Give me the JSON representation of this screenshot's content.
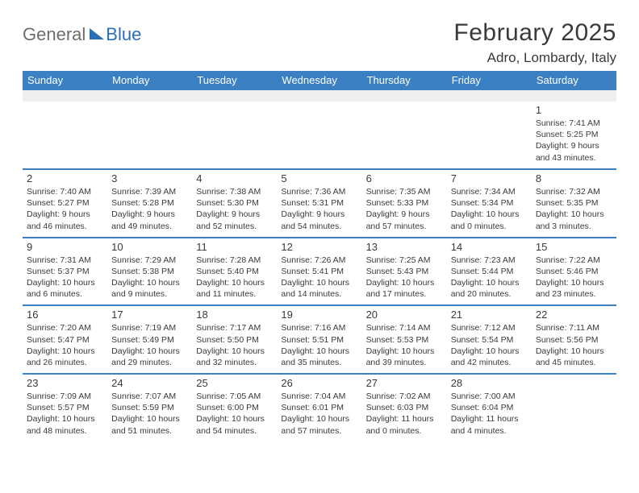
{
  "logo": {
    "word1": "General",
    "word2": "Blue"
  },
  "title": "February 2025",
  "subtitle": "Adro, Lombardy, Italy",
  "colors": {
    "header_bg": "#3a80c3",
    "header_text": "#ffffff",
    "rule": "#3a80c3",
    "blank_row": "#efefef",
    "text": "#3a3a3a",
    "logo_gray": "#6d6d6d",
    "logo_blue": "#2a6fb5",
    "page_bg": "#ffffff"
  },
  "typography": {
    "title_fontsize": 30,
    "subtitle_fontsize": 17,
    "header_fontsize": 13,
    "daynum_fontsize": 13,
    "cell_fontsize": 10.5
  },
  "day_headers": [
    "Sunday",
    "Monday",
    "Tuesday",
    "Wednesday",
    "Thursday",
    "Friday",
    "Saturday"
  ],
  "weeks": [
    [
      null,
      null,
      null,
      null,
      null,
      null,
      {
        "n": "1",
        "sunrise": "Sunrise: 7:41 AM",
        "sunset": "Sunset: 5:25 PM",
        "day1": "Daylight: 9 hours",
        "day2": "and 43 minutes."
      }
    ],
    [
      {
        "n": "2",
        "sunrise": "Sunrise: 7:40 AM",
        "sunset": "Sunset: 5:27 PM",
        "day1": "Daylight: 9 hours",
        "day2": "and 46 minutes."
      },
      {
        "n": "3",
        "sunrise": "Sunrise: 7:39 AM",
        "sunset": "Sunset: 5:28 PM",
        "day1": "Daylight: 9 hours",
        "day2": "and 49 minutes."
      },
      {
        "n": "4",
        "sunrise": "Sunrise: 7:38 AM",
        "sunset": "Sunset: 5:30 PM",
        "day1": "Daylight: 9 hours",
        "day2": "and 52 minutes."
      },
      {
        "n": "5",
        "sunrise": "Sunrise: 7:36 AM",
        "sunset": "Sunset: 5:31 PM",
        "day1": "Daylight: 9 hours",
        "day2": "and 54 minutes."
      },
      {
        "n": "6",
        "sunrise": "Sunrise: 7:35 AM",
        "sunset": "Sunset: 5:33 PM",
        "day1": "Daylight: 9 hours",
        "day2": "and 57 minutes."
      },
      {
        "n": "7",
        "sunrise": "Sunrise: 7:34 AM",
        "sunset": "Sunset: 5:34 PM",
        "day1": "Daylight: 10 hours",
        "day2": "and 0 minutes."
      },
      {
        "n": "8",
        "sunrise": "Sunrise: 7:32 AM",
        "sunset": "Sunset: 5:35 PM",
        "day1": "Daylight: 10 hours",
        "day2": "and 3 minutes."
      }
    ],
    [
      {
        "n": "9",
        "sunrise": "Sunrise: 7:31 AM",
        "sunset": "Sunset: 5:37 PM",
        "day1": "Daylight: 10 hours",
        "day2": "and 6 minutes."
      },
      {
        "n": "10",
        "sunrise": "Sunrise: 7:29 AM",
        "sunset": "Sunset: 5:38 PM",
        "day1": "Daylight: 10 hours",
        "day2": "and 9 minutes."
      },
      {
        "n": "11",
        "sunrise": "Sunrise: 7:28 AM",
        "sunset": "Sunset: 5:40 PM",
        "day1": "Daylight: 10 hours",
        "day2": "and 11 minutes."
      },
      {
        "n": "12",
        "sunrise": "Sunrise: 7:26 AM",
        "sunset": "Sunset: 5:41 PM",
        "day1": "Daylight: 10 hours",
        "day2": "and 14 minutes."
      },
      {
        "n": "13",
        "sunrise": "Sunrise: 7:25 AM",
        "sunset": "Sunset: 5:43 PM",
        "day1": "Daylight: 10 hours",
        "day2": "and 17 minutes."
      },
      {
        "n": "14",
        "sunrise": "Sunrise: 7:23 AM",
        "sunset": "Sunset: 5:44 PM",
        "day1": "Daylight: 10 hours",
        "day2": "and 20 minutes."
      },
      {
        "n": "15",
        "sunrise": "Sunrise: 7:22 AM",
        "sunset": "Sunset: 5:46 PM",
        "day1": "Daylight: 10 hours",
        "day2": "and 23 minutes."
      }
    ],
    [
      {
        "n": "16",
        "sunrise": "Sunrise: 7:20 AM",
        "sunset": "Sunset: 5:47 PM",
        "day1": "Daylight: 10 hours",
        "day2": "and 26 minutes."
      },
      {
        "n": "17",
        "sunrise": "Sunrise: 7:19 AM",
        "sunset": "Sunset: 5:49 PM",
        "day1": "Daylight: 10 hours",
        "day2": "and 29 minutes."
      },
      {
        "n": "18",
        "sunrise": "Sunrise: 7:17 AM",
        "sunset": "Sunset: 5:50 PM",
        "day1": "Daylight: 10 hours",
        "day2": "and 32 minutes."
      },
      {
        "n": "19",
        "sunrise": "Sunrise: 7:16 AM",
        "sunset": "Sunset: 5:51 PM",
        "day1": "Daylight: 10 hours",
        "day2": "and 35 minutes."
      },
      {
        "n": "20",
        "sunrise": "Sunrise: 7:14 AM",
        "sunset": "Sunset: 5:53 PM",
        "day1": "Daylight: 10 hours",
        "day2": "and 39 minutes."
      },
      {
        "n": "21",
        "sunrise": "Sunrise: 7:12 AM",
        "sunset": "Sunset: 5:54 PM",
        "day1": "Daylight: 10 hours",
        "day2": "and 42 minutes."
      },
      {
        "n": "22",
        "sunrise": "Sunrise: 7:11 AM",
        "sunset": "Sunset: 5:56 PM",
        "day1": "Daylight: 10 hours",
        "day2": "and 45 minutes."
      }
    ],
    [
      {
        "n": "23",
        "sunrise": "Sunrise: 7:09 AM",
        "sunset": "Sunset: 5:57 PM",
        "day1": "Daylight: 10 hours",
        "day2": "and 48 minutes."
      },
      {
        "n": "24",
        "sunrise": "Sunrise: 7:07 AM",
        "sunset": "Sunset: 5:59 PM",
        "day1": "Daylight: 10 hours",
        "day2": "and 51 minutes."
      },
      {
        "n": "25",
        "sunrise": "Sunrise: 7:05 AM",
        "sunset": "Sunset: 6:00 PM",
        "day1": "Daylight: 10 hours",
        "day2": "and 54 minutes."
      },
      {
        "n": "26",
        "sunrise": "Sunrise: 7:04 AM",
        "sunset": "Sunset: 6:01 PM",
        "day1": "Daylight: 10 hours",
        "day2": "and 57 minutes."
      },
      {
        "n": "27",
        "sunrise": "Sunrise: 7:02 AM",
        "sunset": "Sunset: 6:03 PM",
        "day1": "Daylight: 11 hours",
        "day2": "and 0 minutes."
      },
      {
        "n": "28",
        "sunrise": "Sunrise: 7:00 AM",
        "sunset": "Sunset: 6:04 PM",
        "day1": "Daylight: 11 hours",
        "day2": "and 4 minutes."
      },
      null
    ]
  ]
}
